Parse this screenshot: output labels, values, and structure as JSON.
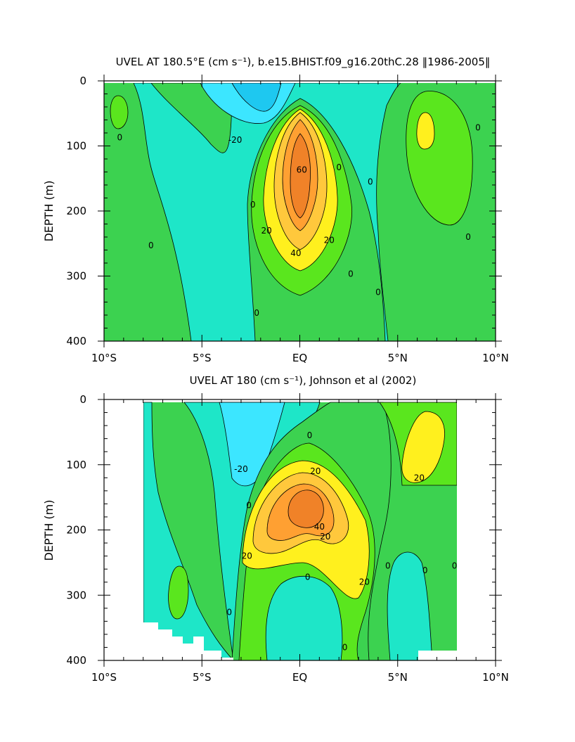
{
  "colors": {
    "band_neg30": "#1ec8f0",
    "band_neg20": "#3ce6ff",
    "band_neg10": "#1ee6c8",
    "band_0": "#3cd250",
    "band_10": "#5ae61e",
    "band_20": "#fff01e",
    "band_30": "#ffc83c",
    "band_40": "#ffa032",
    "band_60": "#f08228",
    "contour_line": "#000000",
    "missing": "#ffffff"
  },
  "chart_data": [
    {
      "type": "contour",
      "title": "UVEL AT 180.5°E (cm s⁻¹), b.e15.BHIST.f09_g16.20thC.28 ‖1986-2005‖",
      "xlabel": "",
      "ylabel": "DEPTH (m)",
      "xlim": [
        -10,
        10
      ],
      "ylim": [
        400,
        0
      ],
      "xticks": [
        -10,
        -5,
        0,
        5,
        10
      ],
      "xticklabels": [
        "10°S",
        "5°S",
        "EQ",
        "5°N",
        "10°N"
      ],
      "yticks": [
        0,
        100,
        200,
        300,
        400
      ],
      "yticklabels": [
        "0",
        "100",
        "200",
        "300",
        "400"
      ],
      "data_extent": {
        "lat": [
          -10,
          10
        ],
        "depth": [
          5,
          400
        ]
      },
      "contour_labels": [
        {
          "text": "0",
          "lat": -9.2,
          "depth": 87
        },
        {
          "text": "-20",
          "lat": -3.3,
          "depth": 91
        },
        {
          "text": "0",
          "lat": 2.0,
          "depth": 133
        },
        {
          "text": "60",
          "lat": 0.1,
          "depth": 137
        },
        {
          "text": "0",
          "lat": 3.6,
          "depth": 155
        },
        {
          "text": "0",
          "lat": 9.1,
          "depth": 72
        },
        {
          "text": "0",
          "lat": -2.4,
          "depth": 190
        },
        {
          "text": "20",
          "lat": -1.7,
          "depth": 230
        },
        {
          "text": "20",
          "lat": 1.5,
          "depth": 245
        },
        {
          "text": "0",
          "lat": -7.6,
          "depth": 253
        },
        {
          "text": "40",
          "lat": -0.2,
          "depth": 265
        },
        {
          "text": "0",
          "lat": 8.6,
          "depth": 240
        },
        {
          "text": "0",
          "lat": 2.6,
          "depth": 297
        },
        {
          "text": "0",
          "lat": 4.0,
          "depth": 325
        },
        {
          "text": "0",
          "lat": -2.2,
          "depth": 357
        }
      ]
    },
    {
      "type": "contour",
      "title": "UVEL AT 180 (cm s⁻¹), Johnson et al (2002)",
      "xlabel": "",
      "ylabel": "DEPTH (m)",
      "xlim": [
        -10,
        10
      ],
      "ylim": [
        400,
        0
      ],
      "xticks": [
        -10,
        -5,
        0,
        5,
        10
      ],
      "xticklabels": [
        "10°S",
        "5°S",
        "EQ",
        "5°N",
        "10°N"
      ],
      "yticks": [
        0,
        100,
        200,
        300,
        400
      ],
      "yticklabels": [
        "0",
        "100",
        "200",
        "300",
        "400"
      ],
      "data_extent": {
        "lat": [
          -8,
          8
        ],
        "depth": [
          5,
          400
        ]
      },
      "contour_labels": [
        {
          "text": "0",
          "lat": 0.5,
          "depth": 55
        },
        {
          "text": "-20",
          "lat": -3.0,
          "depth": 107
        },
        {
          "text": "20",
          "lat": 0.8,
          "depth": 110
        },
        {
          "text": "20",
          "lat": 6.1,
          "depth": 120
        },
        {
          "text": "0",
          "lat": -2.6,
          "depth": 162
        },
        {
          "text": "40",
          "lat": 1.0,
          "depth": 195
        },
        {
          "text": "20",
          "lat": 1.3,
          "depth": 210
        },
        {
          "text": "20",
          "lat": -2.7,
          "depth": 240
        },
        {
          "text": "0",
          "lat": 4.5,
          "depth": 255
        },
        {
          "text": "0",
          "lat": 6.4,
          "depth": 262
        },
        {
          "text": "0",
          "lat": 7.9,
          "depth": 255
        },
        {
          "text": "20",
          "lat": 3.3,
          "depth": 280
        },
        {
          "text": "0",
          "lat": 0.4,
          "depth": 272
        },
        {
          "text": "0",
          "lat": -3.6,
          "depth": 326
        },
        {
          "text": "0",
          "lat": 2.3,
          "depth": 380
        }
      ]
    }
  ]
}
